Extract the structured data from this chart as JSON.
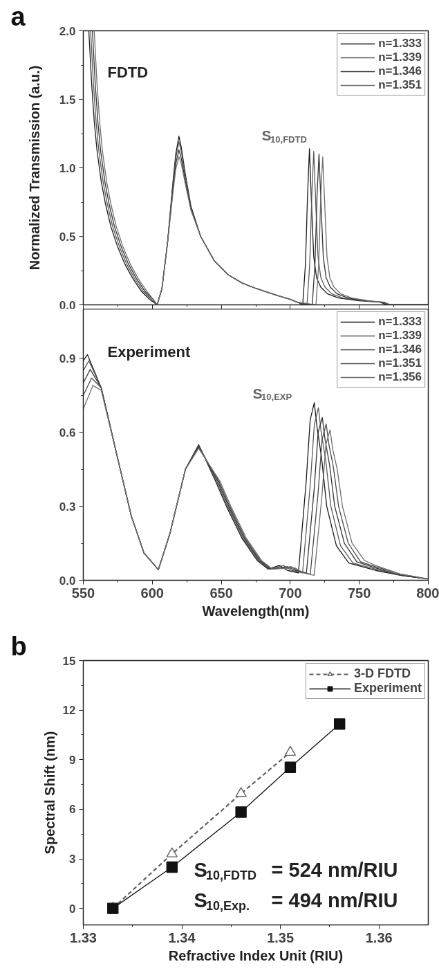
{
  "chart_data": [
    {
      "type": "line",
      "title": "a",
      "ylabel": "Normalized Transmission (a.u.)",
      "xlim": [
        550,
        800
      ],
      "ylim": [
        0,
        2.0
      ],
      "xticks": [
        550,
        600,
        650,
        700,
        750,
        800
      ],
      "yticks": [
        {
          "value": 0,
          "label": "0.0"
        },
        {
          "value": 0.5,
          "label": "0.5"
        },
        {
          "value": 1.0,
          "label": "1.0"
        },
        {
          "value": 1.5,
          "label": "1.5"
        },
        {
          "value": 2.0,
          "label": "2.0"
        }
      ],
      "tick_labels": "y",
      "legend": "top right",
      "annotations": [
        "FDTD",
        "S$_{10,FDTD}$"
      ],
      "series": [
        {
          "name": "n=1.333",
          "color": "#1a1a1a",
          "x": [
            554,
            556,
            558,
            560,
            563,
            566,
            570,
            575,
            580,
            586,
            592,
            598,
            603.5,
            607,
            611,
            615,
            617,
            619.3,
            621,
            624,
            628,
            635,
            645,
            655,
            665,
            675,
            690,
            700,
            705,
            709,
            711,
            712.5,
            713.9,
            715.5,
            717,
            719,
            722,
            727,
            735,
            750,
            765,
            770,
            780,
            800
          ],
          "values": [
            2.0,
            1.62,
            1.33,
            1.12,
            0.9,
            0.74,
            0.57,
            0.42,
            0.3,
            0.19,
            0.1,
            0.04,
            0.0,
            0.12,
            0.45,
            0.9,
            1.1,
            1.23,
            1.15,
            0.95,
            0.72,
            0.5,
            0.32,
            0.22,
            0.16,
            0.12,
            0.07,
            0.04,
            0.02,
            0.0,
            0.3,
            0.8,
            1.14,
            0.7,
            0.35,
            0.2,
            0.13,
            0.08,
            0.05,
            0.03,
            0.02,
            0.0,
            0.0,
            0.0
          ]
        },
        {
          "name": "n=1.339",
          "color": "#5a5a5a",
          "x": [
            555.3,
            557.3,
            559.3,
            561.3,
            564.3,
            567.3,
            571.3,
            576.3,
            581.3,
            587.3,
            593.3,
            599.3,
            603.5,
            607,
            611,
            615,
            617,
            619.3,
            621,
            624,
            628,
            635,
            645,
            655,
            665,
            675,
            690,
            700,
            705,
            712.1,
            714.1,
            715.6,
            717.0,
            718.6,
            720.1,
            722.1,
            725.1,
            730.1,
            738.1,
            753,
            766,
            771,
            780,
            800
          ],
          "values": [
            2.0,
            1.62,
            1.33,
            1.12,
            0.9,
            0.74,
            0.57,
            0.42,
            0.3,
            0.19,
            0.1,
            0.04,
            0.0,
            0.12,
            0.45,
            0.88,
            1.07,
            1.19,
            1.12,
            0.93,
            0.71,
            0.5,
            0.32,
            0.22,
            0.16,
            0.12,
            0.07,
            0.04,
            0.02,
            0.0,
            0.3,
            0.8,
            1.12,
            0.7,
            0.35,
            0.2,
            0.13,
            0.08,
            0.05,
            0.03,
            0.02,
            0.0,
            0.0,
            0.0
          ]
        },
        {
          "name": "n=1.346",
          "color": "#333333",
          "x": [
            556.6,
            558.6,
            560.6,
            562.6,
            565.6,
            568.6,
            572.6,
            577.6,
            582.6,
            588.6,
            594.6,
            600.6,
            603.5,
            607,
            611,
            615,
            617,
            619.3,
            621,
            624,
            628,
            635,
            645,
            655,
            665,
            675,
            690,
            700,
            705,
            715.9,
            717.9,
            719.4,
            720.8,
            722.4,
            723.9,
            725.9,
            728.9,
            733.9,
            741.9,
            755,
            767,
            772,
            780,
            800
          ],
          "values": [
            2.0,
            1.62,
            1.33,
            1.12,
            0.9,
            0.74,
            0.57,
            0.42,
            0.3,
            0.19,
            0.1,
            0.04,
            0.0,
            0.12,
            0.45,
            0.85,
            1.03,
            1.13,
            1.07,
            0.9,
            0.7,
            0.5,
            0.32,
            0.22,
            0.16,
            0.12,
            0.07,
            0.04,
            0.02,
            0.0,
            0.3,
            0.8,
            1.1,
            0.7,
            0.35,
            0.2,
            0.13,
            0.08,
            0.05,
            0.03,
            0.02,
            0.0,
            0.0,
            0.0
          ]
        },
        {
          "name": "n=1.351",
          "color": "#6e6e6e",
          "x": [
            557.9,
            559.9,
            561.9,
            563.9,
            566.9,
            569.9,
            573.9,
            578.9,
            583.9,
            589.9,
            595.9,
            601.5,
            603.5,
            607,
            611,
            615,
            617,
            619.3,
            621,
            624,
            628,
            635,
            645,
            655,
            665,
            675,
            690,
            700,
            705,
            718.6,
            720.6,
            722.1,
            723.5,
            725.1,
            726.6,
            728.6,
            731.6,
            736.6,
            744.6,
            757,
            768,
            773,
            780,
            800
          ],
          "values": [
            2.0,
            1.62,
            1.33,
            1.12,
            0.9,
            0.74,
            0.57,
            0.42,
            0.3,
            0.19,
            0.1,
            0.03,
            0.0,
            0.12,
            0.45,
            0.82,
            0.99,
            1.08,
            1.03,
            0.88,
            0.69,
            0.5,
            0.32,
            0.22,
            0.16,
            0.12,
            0.07,
            0.04,
            0.02,
            0.0,
            0.3,
            0.8,
            1.08,
            0.7,
            0.35,
            0.2,
            0.13,
            0.08,
            0.05,
            0.03,
            0.02,
            0.0,
            0.0,
            0.0
          ]
        }
      ]
    },
    {
      "type": "line",
      "xlabel": "Wavelength(nm)",
      "xlim": [
        550,
        800
      ],
      "ylim": [
        0,
        1.1
      ],
      "xticks": [
        550,
        600,
        650,
        700,
        750,
        800
      ],
      "yticks": [
        {
          "value": 0,
          "label": "0.0"
        },
        {
          "value": 0.3,
          "label": "0.3"
        },
        {
          "value": 0.6,
          "label": "0.6"
        },
        {
          "value": 0.9,
          "label": "0.9"
        }
      ],
      "legend": "top right",
      "annotations": [
        "Experiment",
        "S$_{10,EXP}$"
      ],
      "series": [
        {
          "name": "n=1.333",
          "color": "#1a1a1a",
          "x": [
            550,
            553,
            563,
            575.5,
            584.8,
            594,
            604.4,
            612.8,
            624,
            633.6,
            646,
            653.7,
            665,
            676,
            684,
            692,
            698,
            705.9,
            711.5,
            714.4,
            717.4,
            719.4,
            722.6,
            726.4,
            733.4,
            742.4,
            761.7,
            780,
            800
          ],
          "values": [
            0.89,
            0.915,
            0.78,
            0.48,
            0.26,
            0.11,
            0.043,
            0.19,
            0.45,
            0.55,
            0.4,
            0.3,
            0.17,
            0.08,
            0.045,
            0.06,
            0.04,
            0.03,
            0.4,
            0.65,
            0.72,
            0.62,
            0.5,
            0.3,
            0.14,
            0.07,
            0.04,
            0.02,
            0.005
          ]
        },
        {
          "name": "n=1.339",
          "color": "#5a5a5a",
          "x": [
            550,
            554,
            563,
            575.5,
            584.8,
            594,
            604.4,
            612.8,
            624,
            633.6,
            646.8,
            654.5,
            665.8,
            676.8,
            684.8,
            695,
            701,
            708.9,
            714.5,
            717.4,
            720.4,
            722.4,
            725.6,
            729.4,
            736.4,
            745.4,
            761.7,
            780,
            800
          ],
          "values": [
            0.85,
            0.89,
            0.78,
            0.48,
            0.26,
            0.11,
            0.043,
            0.19,
            0.45,
            0.548,
            0.4,
            0.3,
            0.17,
            0.08,
            0.045,
            0.06,
            0.04,
            0.03,
            0.39,
            0.63,
            0.7,
            0.6,
            0.49,
            0.3,
            0.14,
            0.07,
            0.045,
            0.02,
            0.005
          ]
        },
        {
          "name": "n=1.346",
          "color": "#333333",
          "x": [
            550,
            555,
            563,
            575.5,
            584.8,
            594,
            604.4,
            612.8,
            624,
            633.6,
            647.6,
            655.3,
            666.6,
            677.6,
            685.6,
            697.8,
            703.8,
            711.7,
            717.3,
            720.2,
            723.2,
            725.2,
            728.4,
            732.2,
            739.2,
            748.2,
            761.7,
            780,
            800
          ],
          "values": [
            0.8,
            0.855,
            0.78,
            0.48,
            0.26,
            0.11,
            0.043,
            0.19,
            0.45,
            0.545,
            0.4,
            0.3,
            0.17,
            0.08,
            0.045,
            0.055,
            0.04,
            0.03,
            0.37,
            0.6,
            0.66,
            0.57,
            0.47,
            0.3,
            0.15,
            0.075,
            0.05,
            0.02,
            0.005
          ]
        },
        {
          "name": "n=1.351",
          "color": "#4a4a4a",
          "x": [
            550,
            556,
            563,
            575.5,
            584.8,
            594,
            604.4,
            612.8,
            624,
            633.6,
            648.4,
            656.1,
            667.4,
            678.4,
            686.4,
            700.6,
            706.6,
            714.5,
            720.1,
            723,
            726,
            728,
            731.2,
            735,
            742,
            751,
            761.7,
            780,
            800
          ],
          "values": [
            0.75,
            0.82,
            0.78,
            0.48,
            0.26,
            0.11,
            0.043,
            0.19,
            0.45,
            0.54,
            0.4,
            0.3,
            0.17,
            0.08,
            0.045,
            0.055,
            0.035,
            0.025,
            0.35,
            0.57,
            0.634,
            0.55,
            0.46,
            0.3,
            0.15,
            0.075,
            0.055,
            0.025,
            0.005
          ]
        },
        {
          "name": "n=1.356",
          "color": "#6e6e6e",
          "x": [
            550,
            557,
            563,
            575.5,
            584.8,
            594,
            604.4,
            612.8,
            624,
            633.6,
            649.2,
            656.9,
            668.2,
            679.2,
            687.2,
            703.4,
            709.4,
            717.3,
            722.9,
            725.8,
            728.8,
            730.8,
            734,
            737.8,
            744.8,
            753.8,
            761.7,
            780,
            800
          ],
          "values": [
            0.695,
            0.79,
            0.77,
            0.48,
            0.26,
            0.11,
            0.043,
            0.19,
            0.45,
            0.535,
            0.4,
            0.3,
            0.17,
            0.08,
            0.045,
            0.05,
            0.03,
            0.02,
            0.34,
            0.55,
            0.61,
            0.53,
            0.45,
            0.3,
            0.15,
            0.08,
            0.06,
            0.025,
            0.005
          ]
        }
      ]
    },
    {
      "type": "line",
      "title": "b",
      "xlabel": "Refractive Index Unit (RIU)",
      "ylabel": "Spectral Shift (nm)",
      "xlim": [
        1.33,
        1.365
      ],
      "ylim": [
        -1,
        15
      ],
      "xticks": [
        1.33,
        1.34,
        1.35,
        1.36
      ],
      "yticks": [
        0,
        3,
        6,
        9,
        12,
        15
      ],
      "legend": "top right",
      "annotations": [
        "S$_{10,FDTD}$ = 524 nm/RIU",
        "S$_{10,Exp.}$ = 494 nm/RIU"
      ],
      "series": [
        {
          "name": "3-D FDTD",
          "color": "#606060",
          "marker": "triangle",
          "line_style": "dashed",
          "x": [
            1.333,
            1.339,
            1.346,
            1.351
          ],
          "values": [
            0,
            3.3,
            6.95,
            9.45
          ]
        },
        {
          "name": "Experiment",
          "color": "#111111",
          "marker": "square",
          "line_style": "solid",
          "x": [
            1.333,
            1.339,
            1.346,
            1.351,
            1.356
          ],
          "values": [
            0,
            2.5,
            5.83,
            8.54,
            11.16
          ]
        }
      ]
    }
  ]
}
